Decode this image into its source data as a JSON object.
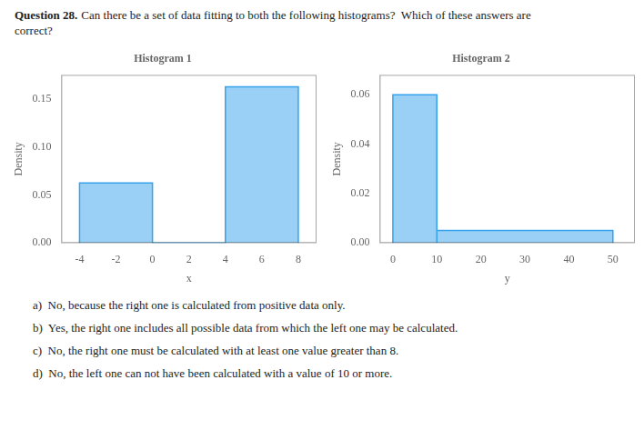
{
  "title": "Question 28.",
  "subtitle": "Can there be a set of data fitting to both the following histograms?  Which of these answers are\ncorrect?",
  "annotations": [
    "a)  No, because the right one is calculated from positive data only.",
    "b)  Yes, the right one includes all possible data from which the left one may be calculated.",
    "c)  No, the right one must be calculated with at least one value greater than 8.",
    "d)  No, the left one can not have been calculated with a value of 10 or more."
  ],
  "chart_data": [
    {
      "type": "histogram",
      "title": "Histogram 1",
      "x_label": "x",
      "y_label": "Density",
      "bins": [
        -4,
        0,
        4,
        8
      ],
      "values": [
        0.0625,
        0,
        0.1625
      ],
      "xlim": [
        -5,
        9
      ],
      "xticks": [
        -4,
        -2,
        0,
        2,
        4,
        6,
        8
      ],
      "ylim": [
        0,
        0.175
      ],
      "yticks": [
        {
          "value": 0,
          "label": "0.00"
        },
        {
          "value": 0.05,
          "label": "0.05"
        },
        {
          "value": 0.1,
          "label": "0.10"
        },
        {
          "value": 0.15,
          "label": "0.15"
        }
      ],
      "grid": false
    },
    {
      "type": "histogram",
      "title": "Histogram 2",
      "x_label": "y",
      "y_label": "Density",
      "bins": [
        0,
        10,
        50
      ],
      "values": [
        0.06,
        0.005
      ],
      "xlim": [
        -3,
        55
      ],
      "xticks": [
        0,
        10,
        20,
        30,
        40,
        50
      ],
      "ylim": [
        0,
        0.068
      ],
      "yticks": [
        {
          "value": 0,
          "label": "0.00"
        },
        {
          "value": 0.02,
          "label": "0.02"
        },
        {
          "value": 0.04,
          "label": "0.04"
        },
        {
          "value": 0.06,
          "label": "0.06"
        }
      ],
      "grid": false
    }
  ]
}
